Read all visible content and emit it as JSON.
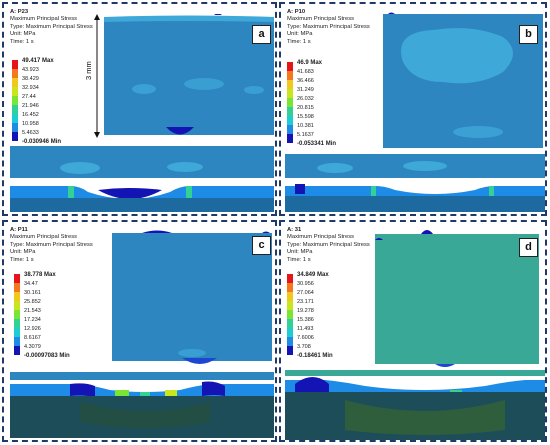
{
  "panels": {
    "a": {
      "letter": "a",
      "title": "A: P23",
      "line1": "Maximum Principal Stress",
      "line2": "Type: Maximum Principal Stress",
      "line3": "Unit: MPa",
      "line4": "Time: 1 s",
      "max": "49.417 Max",
      "levels": [
        "43.923",
        "38.429",
        "32.934",
        "27.44",
        "21.946",
        "16.452",
        "10.958",
        "5.4633"
      ],
      "min": "-0.030946 Min",
      "dimension": "3 mm"
    },
    "b": {
      "letter": "b",
      "title": "A: P10",
      "line1": "Maximum Principal Stress",
      "line2": "Type: Maximum Principal Stress",
      "line3": "Unit: MPa",
      "line4": "Time: 1 s",
      "max": "46.9 Max",
      "levels": [
        "41.683",
        "36.466",
        "31.249",
        "26.032",
        "20.815",
        "15.598",
        "10.381",
        "5.1637"
      ],
      "min": "-0.053341 Min"
    },
    "c": {
      "letter": "c",
      "title": "A: P11",
      "line1": "Maximum Principal Stress",
      "line2": "Type: Maximum Principal Stress",
      "line3": "Unit: MPa",
      "line4": "Time: 1 s",
      "max": "38.778 Max",
      "levels": [
        "34.47",
        "30.161",
        "25.852",
        "21.543",
        "17.234",
        "12.926",
        "8.6167",
        "4.3079"
      ],
      "min": "-0.00097083 Min"
    },
    "d": {
      "letter": "d",
      "title": "A: 31",
      "line1": "Maximum Principal Stress",
      "line2": "Type: Maximum Principal Stress",
      "line3": "Unit: MPa",
      "line4": "Time: 1 s",
      "max": "34.849 Max",
      "levels": [
        "30.956",
        "27.064",
        "23.171",
        "19.278",
        "15.386",
        "11.493",
        "7.6006",
        "3.708"
      ],
      "min": "-0.18461 Min"
    }
  },
  "colors": {
    "scale": [
      "#e8141c",
      "#f5781e",
      "#f0c81e",
      "#c8e61e",
      "#78e632",
      "#32d296",
      "#1ecdd2",
      "#1e8ce6",
      "#1e46d2",
      "#1414b4"
    ],
    "surface": "#2e86c1",
    "surface_light": "#3ea8d8",
    "panel_border": "#1f3a68"
  }
}
